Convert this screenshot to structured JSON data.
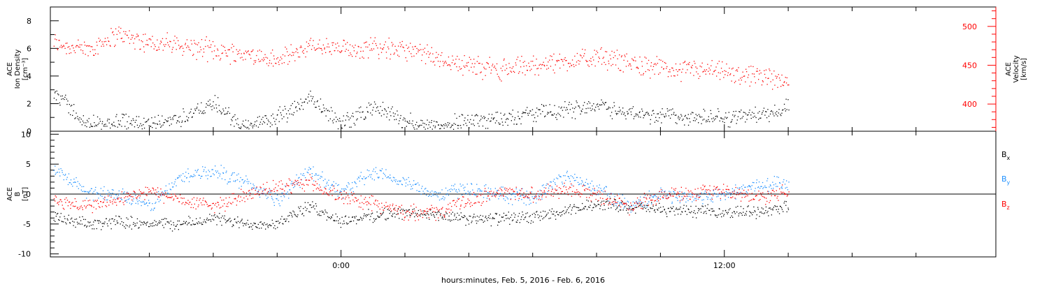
{
  "chart_data": [
    {
      "type": "scatter",
      "panel": "top",
      "ylabel_left": [
        "ACE",
        "Ion Density",
        "[cm⁻³]"
      ],
      "ylabel_right": [
        "ACE",
        "Velocity",
        "[km/s]"
      ],
      "ylim_left": [
        0,
        9
      ],
      "ylim_right": [
        365,
        525
      ],
      "left_ticks": [
        "0",
        "2",
        "4",
        "6",
        "8"
      ],
      "left_tick_values": [
        0,
        2,
        4,
        6,
        8
      ],
      "right_ticks": [
        "400",
        "450",
        "500"
      ],
      "right_tick_values": [
        400,
        450,
        500
      ],
      "series": [
        {
          "axis": "left",
          "color": "#000000",
          "x": [
            -9.0,
            -8.0,
            -7.0,
            -6.0,
            -5.0,
            -4.0,
            -3.0,
            -2.0,
            -1.0,
            0.0,
            1.0,
            2.0,
            3.0,
            4.0,
            5.0,
            6.0,
            7.0,
            8.0,
            9.0,
            10.0,
            11.0,
            12.0,
            13.0,
            14.0
          ],
          "values": [
            3.0,
            0.5,
            0.8,
            0.5,
            1.0,
            2.0,
            0.3,
            1.0,
            2.5,
            0.5,
            1.8,
            0.8,
            0.4,
            0.8,
            1.0,
            1.3,
            1.5,
            2.0,
            1.3,
            1.2,
            1.0,
            1.0,
            1.2,
            1.7
          ]
        },
        {
          "axis": "right",
          "color": "#ff0000",
          "x": [
            -9.0,
            -8.0,
            -7.0,
            -6.0,
            -5.0,
            -4.0,
            -3.0,
            -2.0,
            -1.0,
            0.0,
            1.0,
            2.0,
            3.0,
            4.0,
            5.0,
            6.0,
            7.0,
            8.0,
            9.0,
            10.0,
            11.0,
            12.0,
            13.0,
            14.0
          ],
          "values": [
            480,
            470,
            490,
            480,
            475,
            470,
            465,
            455,
            475,
            470,
            475,
            470,
            460,
            450,
            445,
            450,
            455,
            460,
            455,
            445,
            445,
            440,
            435,
            430
          ]
        }
      ]
    },
    {
      "type": "scatter",
      "panel": "bottom",
      "ylabel_left": [
        "ACE",
        "B",
        "[nT]"
      ],
      "ylim": [
        -10.5,
        10.5
      ],
      "ticks": [
        "-10",
        "-5",
        "0",
        "5",
        "10"
      ],
      "tick_values": [
        -10,
        -5,
        0,
        5,
        10
      ],
      "xlabel": "hours:minutes, Feb.  5, 2016 - Feb.  6, 2016",
      "xlim": [
        -9.1,
        20.5
      ],
      "x_ticks": [
        "0:00",
        "12:00"
      ],
      "x_tick_values": [
        0,
        12
      ],
      "legend": [
        {
          "label": "B",
          "sub": "x",
          "color": "#000000"
        },
        {
          "label": "B",
          "sub": "y",
          "color": "#1e90ff"
        },
        {
          "label": "B",
          "sub": "z",
          "color": "#ff0000"
        }
      ],
      "series": [
        {
          "name": "Bx",
          "color": "#000000",
          "x": [
            -9.0,
            -8.0,
            -7.0,
            -6.0,
            -5.0,
            -4.0,
            -3.0,
            -2.0,
            -1.0,
            0.0,
            1.0,
            2.0,
            3.0,
            4.0,
            5.0,
            6.0,
            7.0,
            8.0,
            9.0,
            10.0,
            11.0,
            12.0,
            13.0,
            14.0
          ],
          "values": [
            -4.0,
            -5.0,
            -4.5,
            -4.8,
            -5.0,
            -4.0,
            -5.0,
            -4.8,
            -2.0,
            -4.5,
            -3.5,
            -3.0,
            -3.5,
            -4.2,
            -4.0,
            -3.8,
            -3.0,
            -1.5,
            -2.0,
            -2.5,
            -2.8,
            -3.0,
            -2.8,
            -2.0
          ]
        },
        {
          "name": "By",
          "color": "#1e90ff",
          "x": [
            -9.0,
            -8.0,
            -7.0,
            -6.0,
            -5.0,
            -4.0,
            -3.0,
            -2.0,
            -1.0,
            0.0,
            1.0,
            2.0,
            3.0,
            4.0,
            5.0,
            6.0,
            7.0,
            8.0,
            9.0,
            10.0,
            11.0,
            12.0,
            13.0,
            14.0
          ],
          "values": [
            4.0,
            0.5,
            0.0,
            -2.0,
            3.0,
            4.0,
            2.0,
            -1.0,
            4.0,
            0.5,
            3.5,
            2.0,
            0.0,
            1.0,
            0.0,
            -0.5,
            3.0,
            1.0,
            -2.0,
            0.0,
            -0.5,
            0.0,
            1.5,
            2.0
          ]
        },
        {
          "name": "Bz",
          "color": "#ff0000",
          "x": [
            -9.0,
            -8.0,
            -7.0,
            -6.0,
            -5.0,
            -4.0,
            -3.0,
            -2.0,
            -1.0,
            0.0,
            1.0,
            2.0,
            3.0,
            4.0,
            5.0,
            6.0,
            7.0,
            8.0,
            9.0,
            10.0,
            11.0,
            12.0,
            13.0,
            14.0
          ],
          "values": [
            -1.0,
            -2.0,
            -1.0,
            0.5,
            -1.0,
            -2.0,
            0.0,
            1.0,
            2.0,
            -0.5,
            -1.5,
            -3.0,
            -3.0,
            -1.0,
            0.5,
            0.0,
            1.0,
            0.0,
            -2.0,
            0.0,
            0.0,
            0.5,
            -0.5,
            0.3
          ]
        }
      ]
    }
  ]
}
